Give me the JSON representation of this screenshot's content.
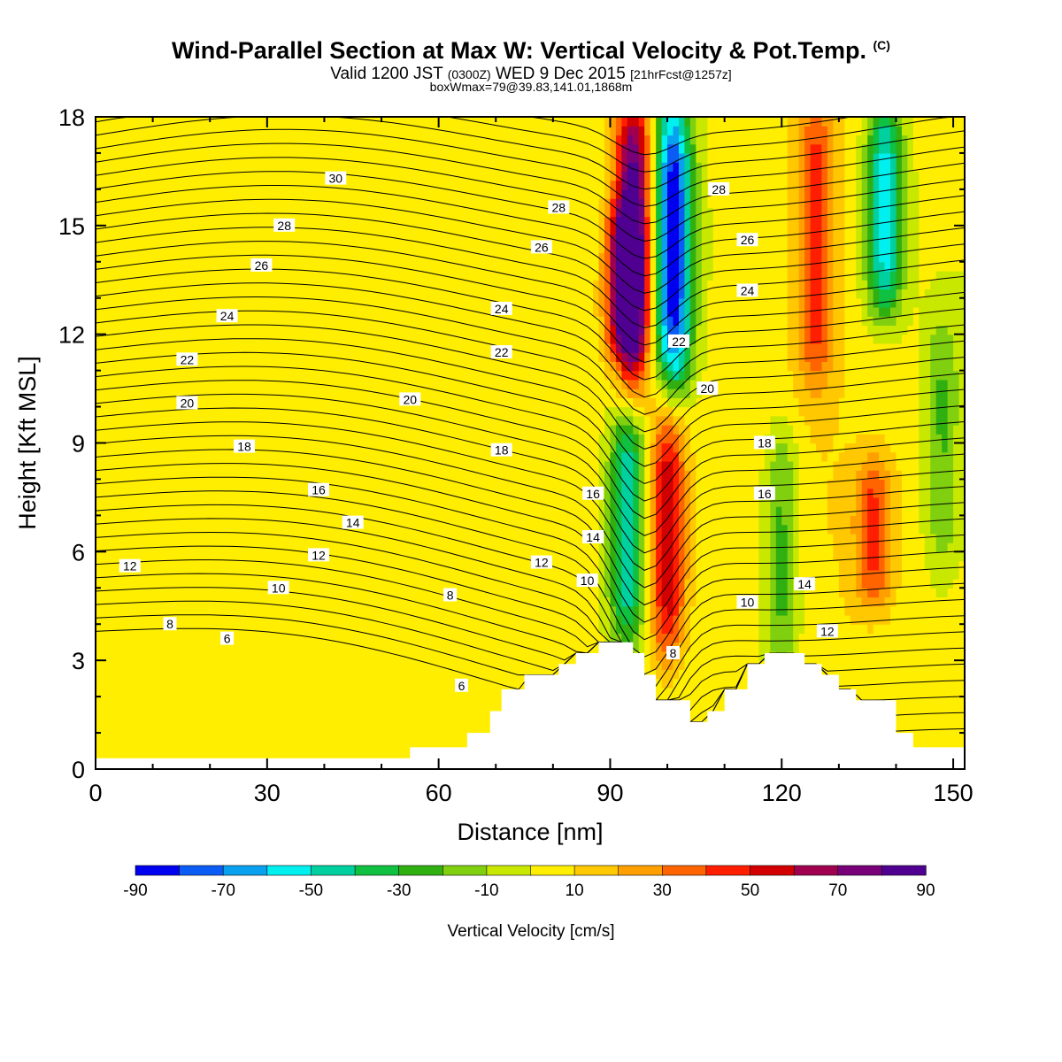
{
  "header": {
    "title": "Wind-Parallel Section at Max W: Vertical Velocity & Pot.Temp.",
    "title_mark": "(C)",
    "valid_prefix": "Valid 1200 JST",
    "valid_zulu": "(0300Z)",
    "valid_date": "WED 9 Dec 2015",
    "forecast": "[21hrFcst@1257z]",
    "box_info": "boxWmax=79@39.83,141.01,1868m"
  },
  "colorbar": {
    "label": "Vertical Velocity [cm/s]",
    "tick_labels": [
      "-90",
      "-70",
      "-50",
      "-30",
      "-10",
      "10",
      "30",
      "50",
      "70",
      "90"
    ],
    "colors": [
      "#0000f0",
      "#0a5cf5",
      "#0aa0f0",
      "#00f0f0",
      "#00d0a0",
      "#10c040",
      "#30b010",
      "#80d010",
      "#c8e800",
      "#ffee00",
      "#ffc800",
      "#ffa000",
      "#ff6400",
      "#ff1e00",
      "#d20000",
      "#a00050",
      "#780078",
      "#500090"
    ]
  },
  "chart_data": {
    "type": "heatmap",
    "xlabel": "Distance [nm]",
    "ylabel": "Height [Kft MSL]",
    "xlim": [
      0,
      152
    ],
    "ylim": [
      0,
      18
    ],
    "xticks": [
      "0",
      "30",
      "60",
      "90",
      "120",
      "150"
    ],
    "yticks": [
      "0",
      "3",
      "6",
      "9",
      "12",
      "15",
      "18"
    ],
    "field": "Vertical Velocity [cm/s]",
    "color_range": [
      -90,
      90
    ],
    "color_step": 10,
    "terrain": {
      "x": [
        0,
        55,
        55,
        59,
        59,
        65,
        65,
        69,
        69,
        71,
        71,
        75,
        75,
        81,
        81,
        84,
        84,
        88,
        88,
        91,
        91,
        94,
        94,
        96,
        96,
        98,
        98,
        104,
        104,
        107,
        107,
        110,
        110,
        114,
        114,
        117,
        117,
        124,
        124,
        127,
        127,
        130,
        130,
        133,
        133,
        140,
        140,
        143,
        143,
        149,
        149,
        152
      ],
      "height_kft": [
        0.3,
        0.3,
        0.6,
        0.6,
        0.6,
        0.6,
        1.0,
        1.0,
        1.6,
        1.6,
        2.2,
        2.2,
        2.6,
        2.6,
        2.9,
        2.9,
        3.2,
        3.2,
        3.5,
        3.5,
        3.5,
        3.5,
        3.2,
        3.2,
        2.6,
        2.6,
        1.9,
        1.9,
        1.3,
        1.3,
        1.6,
        1.6,
        2.2,
        2.2,
        2.9,
        2.9,
        3.2,
        3.2,
        2.9,
        2.9,
        2.6,
        2.6,
        2.2,
        2.2,
        1.9,
        1.9,
        1.0,
        1.0,
        0.6,
        0.6,
        0.6,
        0.6
      ]
    },
    "updrafts": [
      {
        "x": 94,
        "z_min": 11,
        "z_max": 18,
        "peak": 90
      },
      {
        "x": 100,
        "z_min": 3.5,
        "z_max": 9.5,
        "peak": 55
      },
      {
        "x": 92,
        "z_min": 12,
        "z_max": 15,
        "peak": 45
      },
      {
        "x": 126,
        "z_min": 11,
        "z_max": 18,
        "peak": 40
      },
      {
        "x": 136,
        "z_min": 5,
        "z_max": 8,
        "peak": 35
      }
    ],
    "downdrafts": [
      {
        "x": 101,
        "z_min": 11,
        "z_max": 18,
        "peak": -90
      },
      {
        "x": 93,
        "z_min": 4,
        "z_max": 9.5,
        "peak": -55
      },
      {
        "x": 138,
        "z_min": 13,
        "z_max": 18,
        "peak": -60
      },
      {
        "x": 120,
        "z_min": 3,
        "z_max": 9,
        "peak": -30
      },
      {
        "x": 148,
        "z_min": 6,
        "z_max": 12,
        "peak": -25
      }
    ],
    "theta_contours": {
      "unit_note": "potential temperature labels",
      "labeled": [
        {
          "value": "30",
          "x": 42,
          "y": 16.3
        },
        {
          "value": "28",
          "x": 33,
          "y": 15.0
        },
        {
          "value": "28",
          "x": 81,
          "y": 15.5
        },
        {
          "value": "28",
          "x": 109,
          "y": 16.0
        },
        {
          "value": "26",
          "x": 29,
          "y": 13.9
        },
        {
          "value": "26",
          "x": 78,
          "y": 14.4
        },
        {
          "value": "26",
          "x": 114,
          "y": 14.6
        },
        {
          "value": "24",
          "x": 23,
          "y": 12.5
        },
        {
          "value": "24",
          "x": 71,
          "y": 12.7
        },
        {
          "value": "24",
          "x": 114,
          "y": 13.2
        },
        {
          "value": "22",
          "x": 16,
          "y": 11.3
        },
        {
          "value": "22",
          "x": 71,
          "y": 11.5
        },
        {
          "value": "22",
          "x": 102,
          "y": 11.8
        },
        {
          "value": "20",
          "x": 16,
          "y": 10.1
        },
        {
          "value": "20",
          "x": 55,
          "y": 10.2
        },
        {
          "value": "20",
          "x": 107,
          "y": 10.5
        },
        {
          "value": "18",
          "x": 26,
          "y": 8.9
        },
        {
          "value": "18",
          "x": 71,
          "y": 8.8
        },
        {
          "value": "18",
          "x": 117,
          "y": 9.0
        },
        {
          "value": "16",
          "x": 39,
          "y": 7.7
        },
        {
          "value": "16",
          "x": 87,
          "y": 7.6
        },
        {
          "value": "16",
          "x": 117,
          "y": 7.6
        },
        {
          "value": "14",
          "x": 45,
          "y": 6.8
        },
        {
          "value": "14",
          "x": 87,
          "y": 6.4
        },
        {
          "value": "14",
          "x": 124,
          "y": 5.1
        },
        {
          "value": "12",
          "x": 6,
          "y": 5.6
        },
        {
          "value": "12",
          "x": 39,
          "y": 5.9
        },
        {
          "value": "12",
          "x": 78,
          "y": 5.7
        },
        {
          "value": "12",
          "x": 128,
          "y": 3.8
        },
        {
          "value": "10",
          "x": 32,
          "y": 5.0
        },
        {
          "value": "10",
          "x": 86,
          "y": 5.2
        },
        {
          "value": "10",
          "x": 114,
          "y": 4.6
        },
        {
          "value": "8",
          "x": 13,
          "y": 4.0
        },
        {
          "value": "8",
          "x": 62,
          "y": 4.8
        },
        {
          "value": "8",
          "x": 101,
          "y": 3.2
        },
        {
          "value": "6",
          "x": 23,
          "y": 3.6
        },
        {
          "value": "6",
          "x": 64,
          "y": 2.3
        }
      ]
    }
  }
}
